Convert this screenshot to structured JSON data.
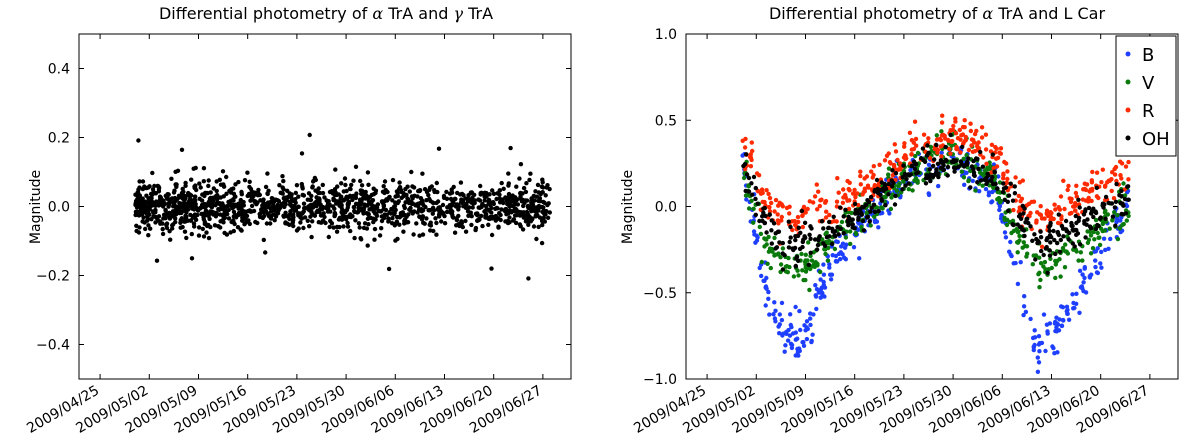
{
  "chart_data": [
    {
      "type": "scatter",
      "title_parts": [
        "Differential photometry of ",
        "α",
        " TrA and ",
        "γ",
        " TrA"
      ],
      "xlabel": "",
      "ylabel": "Magnitude",
      "x_ticks": [
        "2009/04/25",
        "2009/05/02",
        "2009/05/09",
        "2009/05/16",
        "2009/05/23",
        "2009/05/30",
        "2009/06/06",
        "2009/06/13",
        "2009/06/20",
        "2009/06/27"
      ],
      "y_ticks": [
        "0.4",
        "0.2",
        "0.0",
        "−0.2",
        "−0.4"
      ],
      "ylim": [
        -0.5,
        0.5
      ],
      "xlim": [
        "2009/04/22",
        "2009/07/01"
      ],
      "grid": false,
      "series": [
        {
          "color": "#000000",
          "description": "noisy values scattered around 0.0 with typical spread ±0.06, outliers up to +0.24 and down to −0.22",
          "x_range": [
            "2009/04/30",
            "2009/06/28"
          ],
          "center": 0.0,
          "spread": 0.035
        }
      ]
    },
    {
      "type": "scatter",
      "title_parts": [
        "Differential photometry of ",
        "α",
        " TrA and L Car"
      ],
      "xlabel": "",
      "ylabel": "Magnitude",
      "x_ticks": [
        "2009/04/25",
        "2009/05/02",
        "2009/05/09",
        "2009/05/16",
        "2009/05/23",
        "2009/05/30",
        "2009/06/06",
        "2009/06/13",
        "2009/06/20",
        "2009/06/27"
      ],
      "y_ticks": [
        "1.0",
        "0.5",
        "0.0",
        "−0.5",
        "−1.0"
      ],
      "ylim": [
        -1.0,
        1.0
      ],
      "xlim": [
        "2009/04/22",
        "2009/07/01"
      ],
      "grid": false,
      "legend_position": "top-right",
      "series": [
        {
          "name": "B",
          "color": "#1f3fff",
          "keypoints": [
            [
              "2009/04/30",
              0.25
            ],
            [
              "2009/05/01",
              0.05
            ],
            [
              "2009/05/03",
              -0.45
            ],
            [
              "2009/05/06",
              -0.78
            ],
            [
              "2009/05/09",
              -0.7
            ],
            [
              "2009/05/13",
              -0.3
            ],
            [
              "2009/05/18",
              -0.05
            ],
            [
              "2009/05/23",
              0.15
            ],
            [
              "2009/05/30",
              0.28
            ],
            [
              "2009/06/05",
              0.1
            ],
            [
              "2009/06/08",
              -0.4
            ],
            [
              "2009/06/11",
              -0.85
            ],
            [
              "2009/06/14",
              -0.7
            ],
            [
              "2009/06/19",
              -0.35
            ],
            [
              "2009/06/24",
              0.05
            ]
          ]
        },
        {
          "name": "V",
          "color": "#0a7a0a",
          "keypoints": [
            [
              "2009/04/30",
              0.2
            ],
            [
              "2009/05/01",
              0.05
            ],
            [
              "2009/05/03",
              -0.2
            ],
            [
              "2009/05/06",
              -0.38
            ],
            [
              "2009/05/09",
              -0.35
            ],
            [
              "2009/05/13",
              -0.2
            ],
            [
              "2009/05/18",
              0.0
            ],
            [
              "2009/05/23",
              0.18
            ],
            [
              "2009/05/30",
              0.3
            ],
            [
              "2009/06/05",
              0.15
            ],
            [
              "2009/06/08",
              -0.15
            ],
            [
              "2009/06/11",
              -0.35
            ],
            [
              "2009/06/14",
              -0.32
            ],
            [
              "2009/06/19",
              -0.15
            ],
            [
              "2009/06/24",
              0.0
            ]
          ]
        },
        {
          "name": "R",
          "color": "#ff2a00",
          "keypoints": [
            [
              "2009/04/30",
              0.4
            ],
            [
              "2009/05/01",
              0.32
            ],
            [
              "2009/05/03",
              0.05
            ],
            [
              "2009/05/06",
              -0.08
            ],
            [
              "2009/05/09",
              -0.05
            ],
            [
              "2009/05/13",
              0.0
            ],
            [
              "2009/05/18",
              0.12
            ],
            [
              "2009/05/23",
              0.28
            ],
            [
              "2009/05/30",
              0.42
            ],
            [
              "2009/06/05",
              0.3
            ],
            [
              "2009/06/08",
              0.05
            ],
            [
              "2009/06/11",
              -0.08
            ],
            [
              "2009/06/14",
              -0.05
            ],
            [
              "2009/06/19",
              0.1
            ],
            [
              "2009/06/24",
              0.18
            ]
          ]
        },
        {
          "name": "OH",
          "color": "#000000",
          "keypoints": [
            [
              "2009/04/30",
              0.25
            ],
            [
              "2009/05/01",
              0.15
            ],
            [
              "2009/05/03",
              -0.1
            ],
            [
              "2009/05/06",
              -0.22
            ],
            [
              "2009/05/09",
              -0.2
            ],
            [
              "2009/05/13",
              -0.15
            ],
            [
              "2009/05/18",
              0.0
            ],
            [
              "2009/05/23",
              0.18
            ],
            [
              "2009/05/30",
              0.28
            ],
            [
              "2009/06/05",
              0.18
            ],
            [
              "2009/06/08",
              -0.05
            ],
            [
              "2009/06/11",
              -0.2
            ],
            [
              "2009/06/14",
              -0.18
            ],
            [
              "2009/06/19",
              -0.05
            ],
            [
              "2009/06/24",
              0.05
            ]
          ]
        }
      ]
    }
  ]
}
